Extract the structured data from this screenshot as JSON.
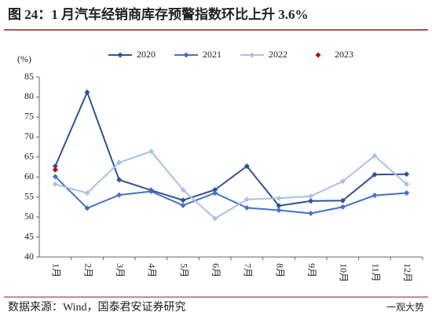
{
  "chart_data": {
    "type": "line",
    "title": "图 24：1 月汽车经销商库存预警指数环比上升 3.6%",
    "y_label": "(%)",
    "source": "数据来源：Wind，国泰君安证券研究",
    "watermark": "一观大势",
    "categories": [
      "1月",
      "2月",
      "3月",
      "4月",
      "5月",
      "6月",
      "7月",
      "8月",
      "9月",
      "10月",
      "11月",
      "12月"
    ],
    "series": [
      {
        "name": "2020",
        "color": "#2e5395",
        "values": [
          62.7,
          81.2,
          59.3,
          56.7,
          54.2,
          56.8,
          62.7,
          52.8,
          54.0,
          54.1,
          60.6,
          60.7
        ]
      },
      {
        "name": "2021",
        "color": "#4472c4",
        "values": [
          60.1,
          52.2,
          55.5,
          56.4,
          52.9,
          56.0,
          52.3,
          51.7,
          50.9,
          52.5,
          55.4,
          56.0
        ]
      },
      {
        "name": "2022",
        "color": "#a9c1e6",
        "values": [
          58.2,
          56.0,
          63.6,
          66.4,
          56.8,
          49.6,
          54.4,
          54.7,
          55.2,
          58.9,
          65.3,
          58.2
        ]
      },
      {
        "name": "2023",
        "color": "#c00000",
        "values": [
          61.8,
          null,
          null,
          null,
          null,
          null,
          null,
          null,
          null,
          null,
          null,
          null
        ]
      }
    ],
    "ylim": [
      40,
      85
    ],
    "yticks": [
      40,
      45,
      50,
      55,
      60,
      65,
      70,
      75,
      80,
      85
    ],
    "grid": false
  }
}
